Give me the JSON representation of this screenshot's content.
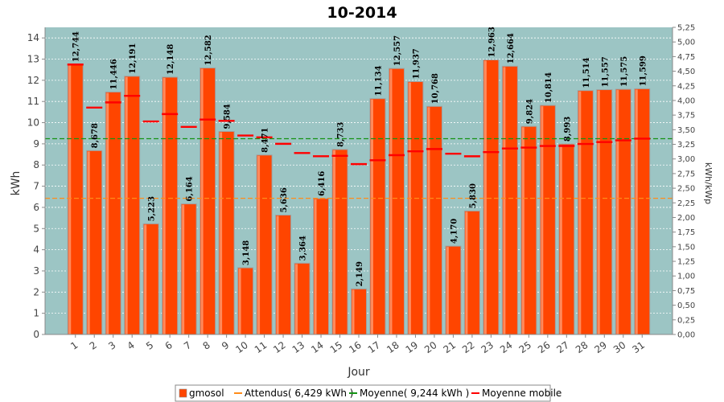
{
  "chart_data": {
    "type": "bar",
    "title": "10-2014",
    "xlabel": "Jour",
    "ylabel": "kWh",
    "y2label": "kWh/kWp",
    "ylim": [
      0,
      14.5
    ],
    "y2lim": [
      0,
      5.25
    ],
    "yticks": [
      "0",
      "1",
      "2",
      "3",
      "4",
      "5",
      "6",
      "7",
      "8",
      "9",
      "10",
      "11",
      "12",
      "13",
      "14"
    ],
    "y2ticks": [
      "0,00",
      "0,25",
      "0,50",
      "0,75",
      "1,00",
      "1,25",
      "1,50",
      "1,75",
      "2,00",
      "2,25",
      "2,50",
      "2,75",
      "3,00",
      "3,25",
      "3,50",
      "3,75",
      "4,00",
      "4,25",
      "4,50",
      "4,75",
      "5,00",
      "5,25"
    ],
    "categories": [
      "1",
      "2",
      "3",
      "4",
      "5",
      "6",
      "7",
      "8",
      "9",
      "10",
      "11",
      "12",
      "13",
      "14",
      "15",
      "16",
      "17",
      "18",
      "19",
      "20",
      "21",
      "22",
      "23",
      "24",
      "25",
      "26",
      "27",
      "28",
      "29",
      "30",
      "31"
    ],
    "series": [
      {
        "name": "gmosol",
        "values": [
          12.744,
          8.678,
          11.446,
          12.191,
          5.223,
          12.148,
          6.164,
          12.582,
          9.584,
          3.148,
          8.471,
          5.636,
          3.364,
          6.416,
          8.733,
          2.149,
          11.134,
          12.557,
          11.937,
          10.768,
          4.17,
          5.83,
          12.963,
          12.664,
          9.824,
          10.814,
          8.993,
          11.514,
          11.557,
          11.575,
          11.599
        ],
        "labels": [
          "12,744",
          "8,678",
          "11,446",
          "12,191",
          "5,223",
          "12,148",
          "6,164",
          "12,582",
          "9,584",
          "3,148",
          "8,471",
          "5,636",
          "3,364",
          "6,416",
          "8,733",
          "2,149",
          "11,134",
          "12,557",
          "11,937",
          "10,768",
          "4,170",
          "5,830",
          "12,963",
          "12,664",
          "9,824",
          "10,814",
          "8,993",
          "11,514",
          "11,557",
          "11,575",
          "11,599"
        ]
      },
      {
        "name": "Attendus( 6,429 kWh )",
        "value": 6.429
      },
      {
        "name": "Moyenne( 9,244 kWh )",
        "value": 9.244
      },
      {
        "name": "Moyenne mobile",
        "values": [
          12.744,
          10.711,
          10.956,
          11.265,
          10.056,
          10.405,
          9.799,
          10.147,
          10.085,
          9.391,
          9.307,
          9.001,
          8.567,
          8.413,
          8.435,
          8.042,
          8.224,
          8.465,
          8.648,
          8.754,
          8.535,
          8.412,
          8.61,
          8.779,
          8.821,
          8.898,
          8.901,
          8.995,
          9.083,
          9.166,
          9.244
        ]
      }
    ],
    "colors": {
      "bar": "#ff4500",
      "bar_edge": "#a0a0a0",
      "plot_bg": "#9cc5c4",
      "attendus": "#ff8c1a",
      "moyenne": "#149414",
      "mobile": "#ff0000"
    },
    "grid": true,
    "legend": "bottom"
  }
}
